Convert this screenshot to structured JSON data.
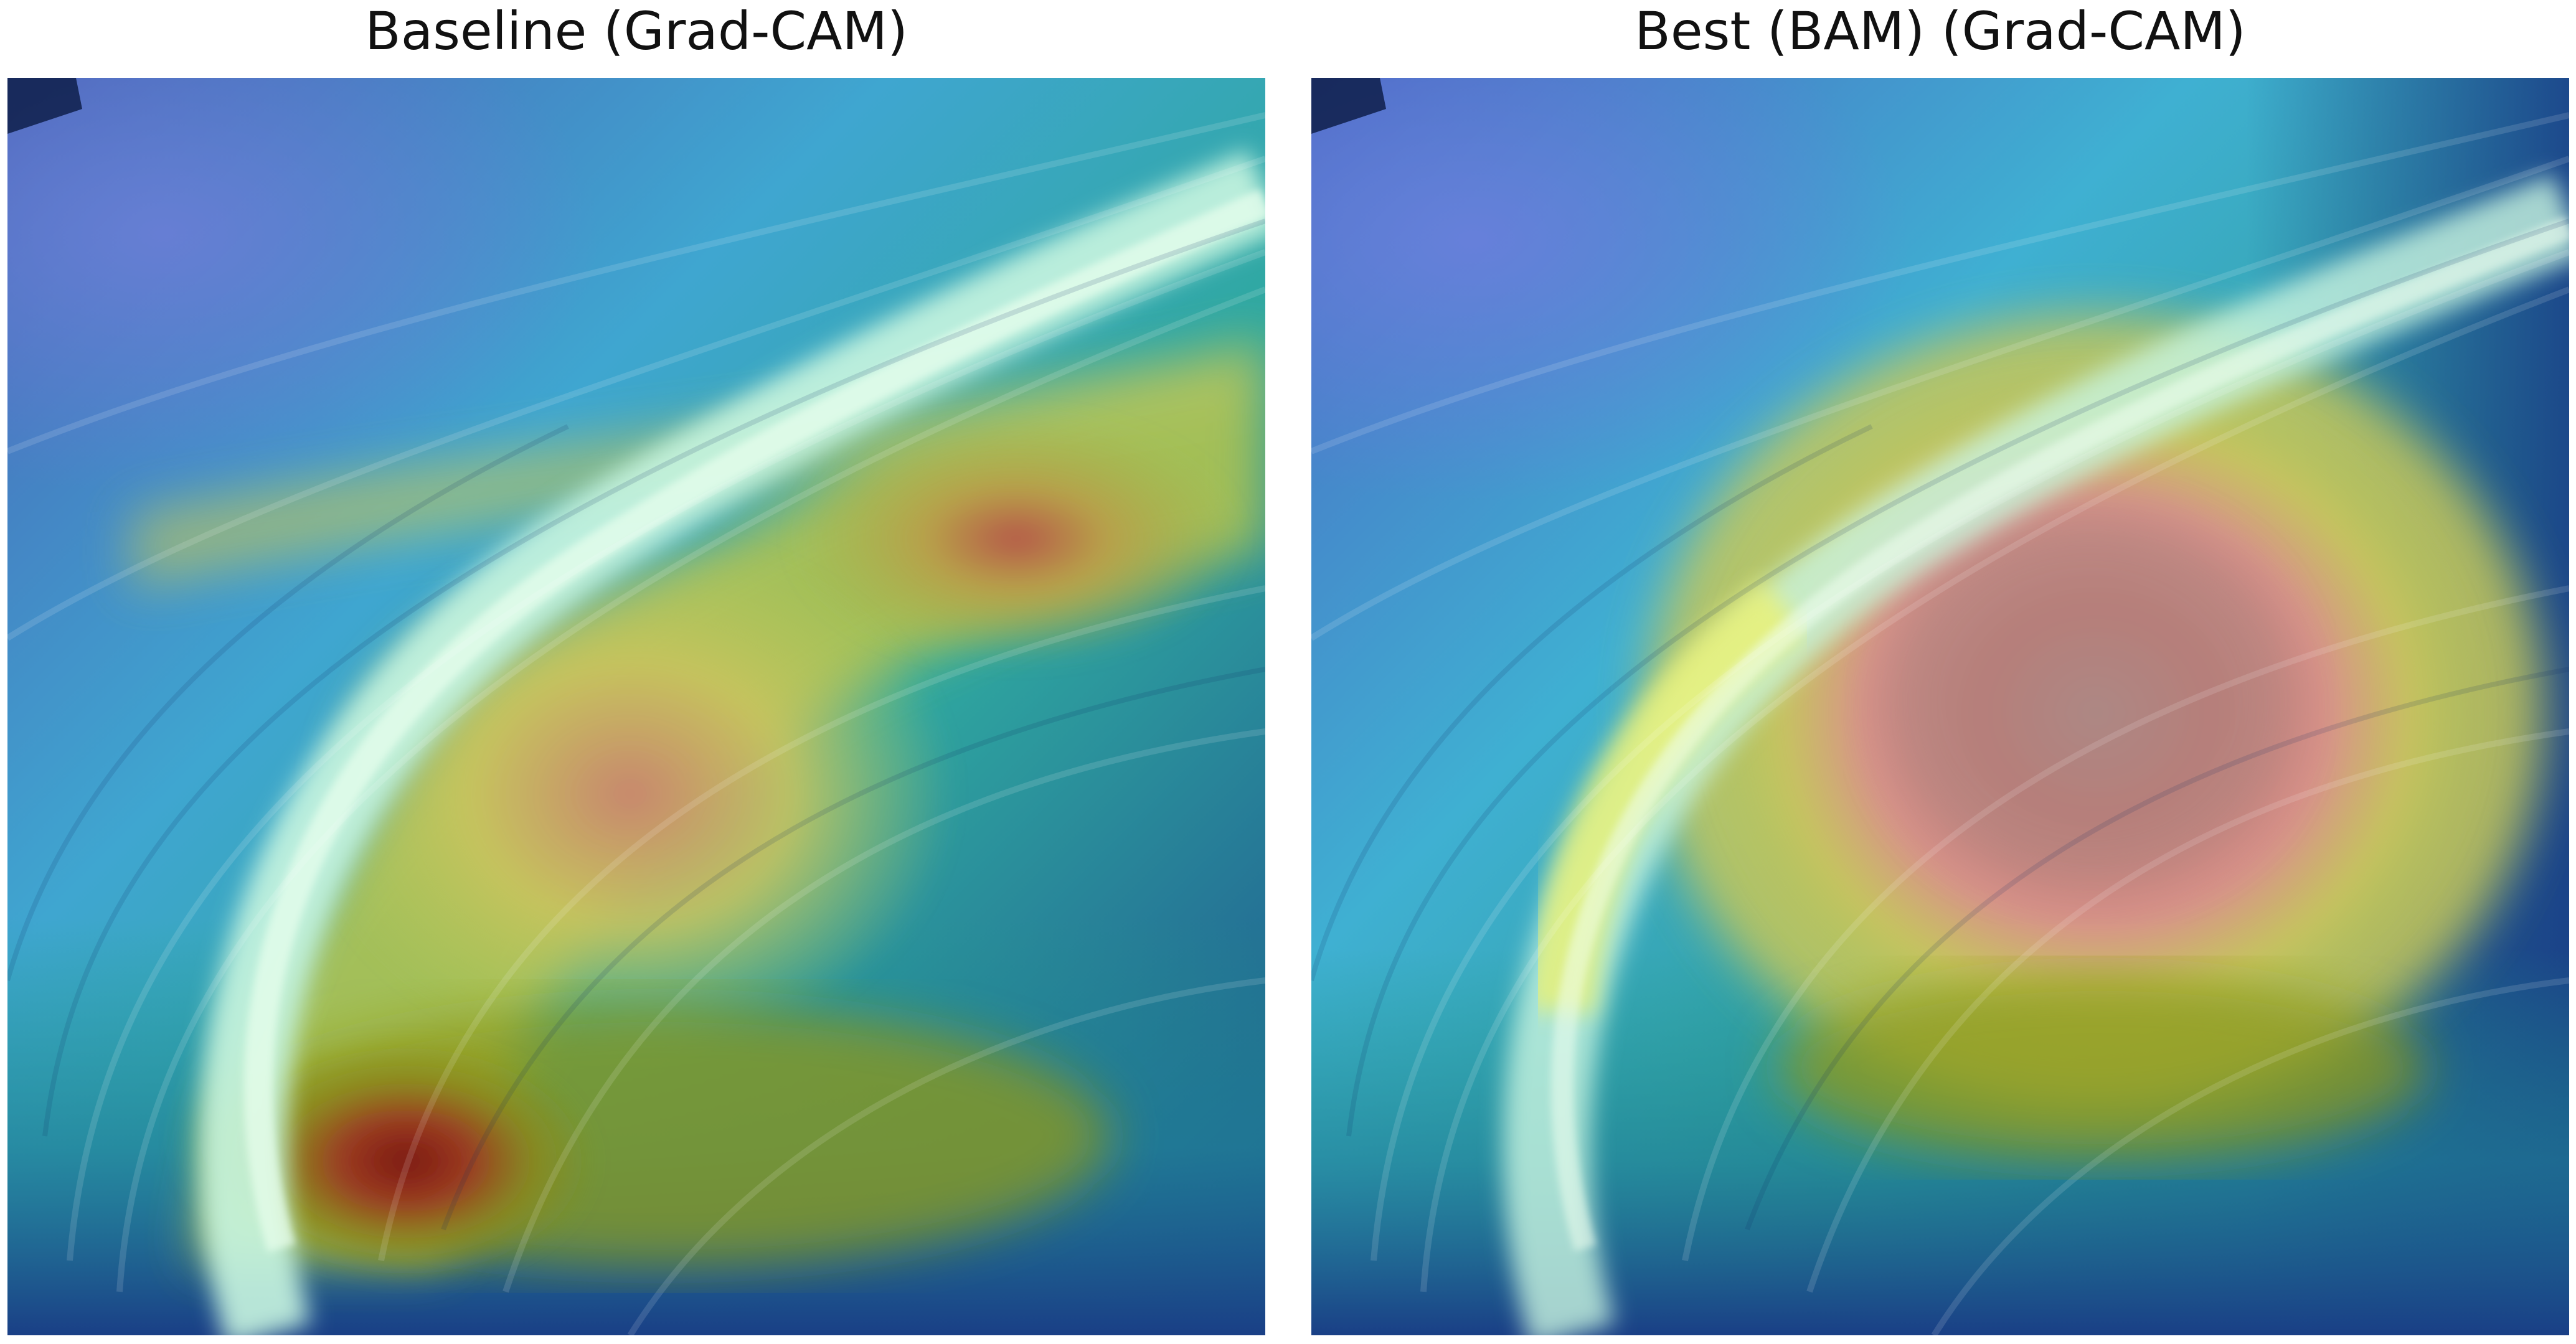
{
  "panels": [
    {
      "title": "Baseline (Grad-CAM)",
      "kind": "grad-cam-heatmap-overlay",
      "colormap": "jet",
      "hotspots": [
        "lower-left near base of bright arc",
        "upper-right"
      ]
    },
    {
      "title": "Best (BAM) (Grad-CAM)",
      "kind": "grad-cam-heatmap-overlay",
      "colormap": "jet",
      "hotspots": [
        "center interior of bright arc"
      ]
    }
  ],
  "colors": {
    "deep-blue": "#1c3f8a",
    "blue": "#4a6fd0",
    "cyan": "#4fd0d6",
    "light-cyan": "#a8f0e6",
    "yellow": "#e4e46a",
    "olive": "#9a9a1e",
    "red": "#c0504a",
    "dark-red": "#8a1f14",
    "teal": "#1f9a8a"
  }
}
